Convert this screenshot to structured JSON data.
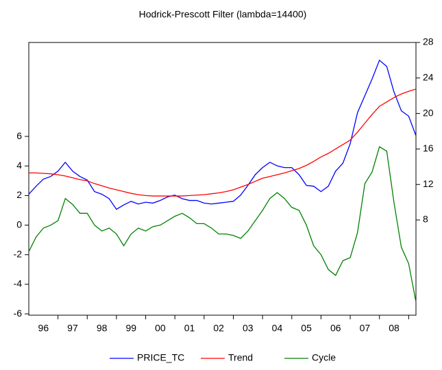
{
  "chart_data": {
    "type": "line",
    "title": "Hodrick-Prescott Filter (lambda=14400)",
    "x": [
      1996,
      1996.25,
      1996.5,
      1996.75,
      1997,
      1997.25,
      1997.5,
      1997.75,
      1998,
      1998.25,
      1998.5,
      1998.75,
      1999,
      1999.25,
      1999.5,
      1999.75,
      2000,
      2000.25,
      2000.5,
      2000.75,
      2001,
      2001.25,
      2001.5,
      2001.75,
      2002,
      2002.25,
      2002.5,
      2002.75,
      2003,
      2003.25,
      2003.5,
      2003.75,
      2004,
      2004.25,
      2004.5,
      2004.75,
      2005,
      2005.25,
      2005.5,
      2005.75,
      2006,
      2006.25,
      2006.5,
      2006.75,
      2007,
      2007.25,
      2007.5,
      2007.75,
      2008,
      2008.25,
      2008.5,
      2008.75,
      2009,
      2009.25
    ],
    "xlim": [
      1996,
      2009.25
    ],
    "xticks": [
      {
        "value": 1996.5,
        "label": "96"
      },
      {
        "value": 1997.5,
        "label": "97"
      },
      {
        "value": 1998.5,
        "label": "98"
      },
      {
        "value": 1999.5,
        "label": "99"
      },
      {
        "value": 2000.5,
        "label": "00"
      },
      {
        "value": 2001.5,
        "label": "01"
      },
      {
        "value": 2002.5,
        "label": "02"
      },
      {
        "value": 2003.5,
        "label": "03"
      },
      {
        "value": 2004.5,
        "label": "04"
      },
      {
        "value": 2005.5,
        "label": "05"
      },
      {
        "value": 2006.5,
        "label": "06"
      },
      {
        "value": 2007.5,
        "label": "07"
      },
      {
        "value": 2008.5,
        "label": "08"
      }
    ],
    "ylim": [
      -6.09,
      12.35
    ],
    "yticks": [
      -6,
      -4,
      -2,
      0,
      2,
      4,
      6
    ],
    "y2lim": [
      -2.73,
      28
    ],
    "y2ticks": [
      8,
      12,
      16,
      20,
      24,
      28
    ],
    "series": [
      {
        "name": "PRICE_TC",
        "color": "#0000ff",
        "axis": "y2",
        "values": [
          10.9,
          11.8,
          12.6,
          12.9,
          13.5,
          14.5,
          13.5,
          12.9,
          12.5,
          11.2,
          10.9,
          10.4,
          9.2,
          9.7,
          10.1,
          9.8,
          10.0,
          9.9,
          10.2,
          10.6,
          10.8,
          10.4,
          10.2,
          10.2,
          9.9,
          9.8,
          9.9,
          10.0,
          10.1,
          10.8,
          11.9,
          13.1,
          13.9,
          14.5,
          14.1,
          13.9,
          13.9,
          13.1,
          11.9,
          11.8,
          11.2,
          11.8,
          13.5,
          14.4,
          16.6,
          20.1,
          22.0,
          23.9,
          26.0,
          25.3,
          22.4,
          20.3,
          19.7,
          17.5
        ]
      },
      {
        "name": "Trend",
        "color": "#ff0000",
        "axis": "y2",
        "values": [
          13.3,
          13.3,
          13.25,
          13.2,
          13.1,
          12.95,
          12.75,
          12.55,
          12.4,
          12.1,
          11.85,
          11.6,
          11.4,
          11.2,
          11.0,
          10.85,
          10.75,
          10.7,
          10.7,
          10.7,
          10.7,
          10.7,
          10.75,
          10.8,
          10.85,
          10.95,
          11.05,
          11.2,
          11.4,
          11.7,
          12.0,
          12.35,
          12.7,
          12.9,
          13.1,
          13.3,
          13.55,
          13.8,
          14.15,
          14.6,
          15.1,
          15.5,
          16.0,
          16.5,
          17.0,
          17.9,
          18.9,
          19.9,
          20.8,
          21.3,
          21.8,
          22.2,
          22.5,
          22.75
        ]
      },
      {
        "name": "Cycle",
        "color": "#008000",
        "values": [
          -1.8,
          -0.8,
          -0.2,
          0.0,
          0.3,
          1.8,
          1.4,
          0.8,
          0.8,
          0.0,
          -0.4,
          -0.2,
          -0.6,
          -1.4,
          -0.6,
          -0.2,
          -0.4,
          -0.1,
          0.0,
          0.3,
          0.6,
          0.8,
          0.5,
          0.1,
          0.1,
          -0.2,
          -0.6,
          -0.6,
          -0.7,
          -0.9,
          -0.4,
          0.3,
          1.0,
          1.8,
          2.2,
          1.8,
          1.2,
          1.0,
          0.0,
          -1.4,
          -2.0,
          -3.0,
          -3.4,
          -2.4,
          -2.2,
          -0.5,
          2.8,
          3.6,
          5.3,
          5.0,
          1.5,
          -1.5,
          -2.6,
          -5.2
        ]
      }
    ]
  }
}
